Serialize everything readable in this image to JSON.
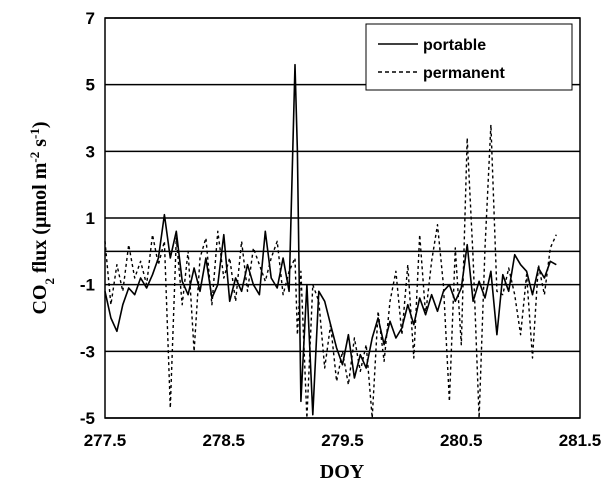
{
  "chart_data": {
    "type": "line",
    "xlabel": "DOY",
    "ylabel_prefix": "CO",
    "ylabel_sub": "2",
    "ylabel_main": " flux (µmol m",
    "ylabel_sup1": "-2",
    "ylabel_mid": " s",
    "ylabel_sup2": "-1",
    "ylabel_end": ")",
    "xlim": [
      277.5,
      281.5
    ],
    "ylim": [
      -5,
      7
    ],
    "xticks": [
      "277.5",
      "278.5",
      "279.5",
      "280.5",
      "281.5"
    ],
    "yticks": [
      "-5",
      "-3",
      "-1",
      "1",
      "3",
      "5",
      "7"
    ],
    "grid_y": [
      -5,
      -3,
      -1,
      0,
      1,
      3,
      5,
      7
    ],
    "legend_position": "top-right",
    "series": [
      {
        "name": "portable",
        "style": "solid",
        "x": [
          277.5,
          277.55,
          277.6,
          277.65,
          277.7,
          277.75,
          277.8,
          277.85,
          277.9,
          277.95,
          278.0,
          278.05,
          278.1,
          278.15,
          278.2,
          278.25,
          278.3,
          278.35,
          278.4,
          278.45,
          278.5,
          278.55,
          278.6,
          278.65,
          278.7,
          278.75,
          278.8,
          278.85,
          278.9,
          278.95,
          279.0,
          279.05,
          279.1,
          279.12,
          279.15,
          279.2,
          279.25,
          279.3,
          279.35,
          279.4,
          279.45,
          279.5,
          279.55,
          279.6,
          279.65,
          279.7,
          279.75,
          279.8,
          279.85,
          279.9,
          279.95,
          280.0,
          280.05,
          280.1,
          280.15,
          280.2,
          280.25,
          280.3,
          280.35,
          280.4,
          280.45,
          280.5,
          280.55,
          280.6,
          280.65,
          280.7,
          280.75,
          280.8,
          280.85,
          280.9,
          280.95,
          281.0,
          281.05,
          281.1,
          281.15,
          281.2,
          281.25,
          281.3
        ],
        "y": [
          -1.2,
          -2.0,
          -2.4,
          -1.6,
          -1.1,
          -1.3,
          -0.8,
          -1.1,
          -0.7,
          -0.2,
          1.1,
          -0.2,
          0.6,
          -0.9,
          -1.3,
          -0.5,
          -1.2,
          -0.2,
          -1.4,
          -1.0,
          0.5,
          -1.5,
          -0.8,
          -1.2,
          -0.4,
          -1.0,
          -1.3,
          0.6,
          -0.8,
          -1.1,
          -0.2,
          -1.2,
          5.6,
          3.0,
          -4.5,
          -1.0,
          -4.9,
          -1.2,
          -1.5,
          -2.2,
          -2.9,
          -3.4,
          -2.5,
          -3.8,
          -3.1,
          -3.5,
          -2.6,
          -2.0,
          -2.8,
          -2.1,
          -2.6,
          -2.3,
          -1.6,
          -2.2,
          -1.4,
          -1.9,
          -1.3,
          -1.8,
          -1.2,
          -1.0,
          -1.5,
          -1.1,
          0.2,
          -1.5,
          -0.9,
          -1.4,
          -0.6,
          -2.5,
          -0.7,
          -1.2,
          -0.1,
          -0.4,
          -0.6,
          -1.3,
          -0.5,
          -0.8,
          -0.3,
          -0.4
        ]
      },
      {
        "name": "permanent",
        "style": "dashed",
        "x": [
          277.5,
          277.55,
          277.6,
          277.65,
          277.7,
          277.75,
          277.8,
          277.85,
          277.9,
          277.95,
          278.0,
          278.05,
          278.1,
          278.15,
          278.2,
          278.25,
          278.3,
          278.35,
          278.4,
          278.45,
          278.5,
          278.55,
          278.6,
          278.65,
          278.7,
          278.75,
          278.8,
          278.85,
          278.9,
          278.95,
          279.0,
          279.05,
          279.1,
          279.12,
          279.15,
          279.2,
          279.25,
          279.3,
          279.35,
          279.4,
          279.45,
          279.5,
          279.55,
          279.6,
          279.65,
          279.7,
          279.75,
          279.8,
          279.85,
          279.9,
          279.95,
          280.0,
          280.05,
          280.1,
          280.15,
          280.2,
          280.25,
          280.3,
          280.35,
          280.4,
          280.45,
          280.5,
          280.55,
          280.6,
          280.65,
          280.7,
          280.75,
          280.8,
          280.85,
          280.9,
          280.95,
          281.0,
          281.05,
          281.1,
          281.15,
          281.2,
          281.25,
          281.3
        ],
        "y": [
          0.3,
          -1.6,
          -0.4,
          -1.2,
          0.2,
          -0.8,
          -0.3,
          -1.0,
          0.5,
          -0.4,
          0.3,
          -4.7,
          0.4,
          -1.6,
          0.0,
          -3.0,
          -0.2,
          0.4,
          -1.6,
          0.6,
          -0.8,
          -0.2,
          -1.5,
          0.3,
          -1.2,
          0.1,
          -0.4,
          -0.9,
          -0.2,
          0.3,
          -1.3,
          -0.6,
          -0.2,
          -2.5,
          -0.6,
          -5.0,
          -1.0,
          -1.5,
          -3.5,
          -2.2,
          -3.9,
          -3.0,
          -4.0,
          -2.6,
          -3.6,
          -2.8,
          -5.0,
          -1.8,
          -3.3,
          -1.5,
          -0.6,
          -2.5,
          -0.4,
          -3.2,
          0.5,
          -1.9,
          -0.3,
          0.8,
          -1.0,
          -4.5,
          0.1,
          -2.8,
          3.4,
          -0.2,
          -5.0,
          0.1,
          3.8,
          -1.2,
          -1.3,
          -0.5,
          -1.3,
          -2.5,
          -0.7,
          -3.2,
          -0.4,
          -1.3,
          0.1,
          0.5
        ]
      }
    ]
  }
}
